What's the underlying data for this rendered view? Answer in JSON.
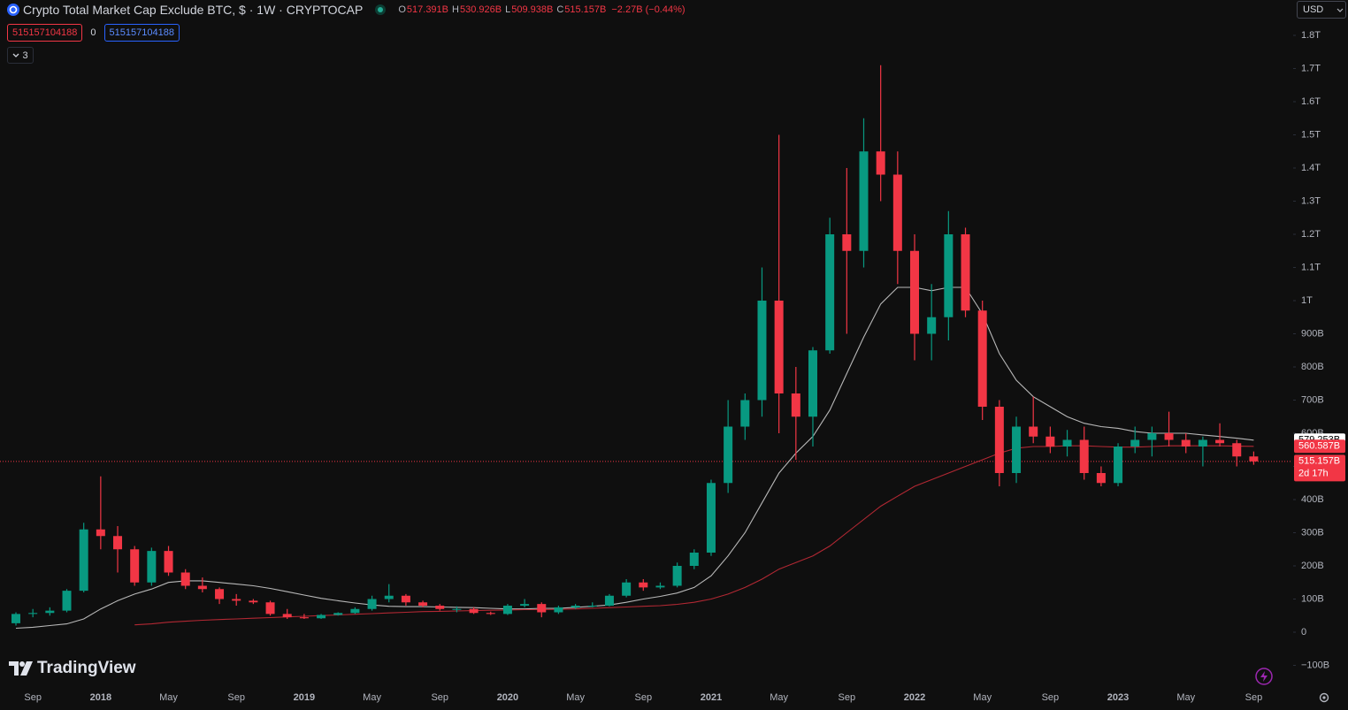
{
  "header": {
    "symbol": "Crypto Total Market Cap Exclude BTC, $ · 1W · CRYPTOCAP",
    "ohlc": [
      {
        "key": "O",
        "value": "517.391B"
      },
      {
        "key": "H",
        "value": "530.926B"
      },
      {
        "key": "L",
        "value": "509.938B"
      },
      {
        "key": "C",
        "value": "515.157B"
      }
    ],
    "change": "−2.27B (−0.44%)",
    "inputs": [
      "515157104188",
      "0",
      "515157104188"
    ],
    "collapse_count": "3",
    "currency": "USD",
    "logo": "TradingView"
  },
  "chart_data": {
    "type": "candlestick",
    "categories": [
      null,
      "Sep",
      null,
      null,
      null,
      "2018",
      null,
      null,
      null,
      "May",
      null,
      null,
      null,
      "Sep",
      null,
      null,
      null,
      "2019",
      null,
      null,
      null,
      "May",
      null,
      null,
      null,
      "Sep",
      null,
      null,
      null,
      "2020",
      null,
      null,
      null,
      "May",
      null,
      null,
      null,
      "Sep",
      null,
      null,
      null,
      "2021",
      null,
      null,
      null,
      "May",
      null,
      null,
      null,
      "Sep",
      null,
      null,
      null,
      "2022",
      null,
      null,
      null,
      "May",
      null,
      null,
      null,
      "Sep",
      null,
      null,
      null,
      "2023",
      null,
      null,
      null,
      "May",
      null,
      null,
      null,
      "Sep"
    ],
    "open": [
      27,
      55,
      58,
      65,
      125,
      310,
      290,
      250,
      150,
      245,
      180,
      140,
      130,
      100,
      95,
      90,
      55,
      45,
      42,
      52,
      58,
      70,
      100,
      110,
      90,
      80,
      70,
      70,
      58,
      55,
      80,
      85,
      60,
      75,
      80,
      80,
      110,
      150,
      135,
      140,
      200,
      240,
      450,
      620,
      700,
      1000,
      720,
      650,
      850,
      1200,
      1150,
      1450,
      1380,
      1150,
      900,
      950,
      1200,
      970,
      680,
      480,
      620,
      590,
      560,
      580,
      480,
      450,
      560,
      580,
      600,
      580,
      560,
      580,
      570,
      530
    ],
    "high": [
      60,
      70,
      75,
      130,
      330,
      470,
      320,
      260,
      255,
      260,
      190,
      165,
      135,
      115,
      100,
      95,
      70,
      55,
      55,
      60,
      75,
      110,
      145,
      115,
      95,
      85,
      78,
      75,
      62,
      85,
      100,
      90,
      80,
      85,
      90,
      115,
      160,
      160,
      150,
      210,
      250,
      460,
      700,
      720,
      1100,
      1500,
      800,
      860,
      1250,
      1400,
      1550,
      1710,
      1450,
      1200,
      1050,
      1270,
      1220,
      1000,
      700,
      650,
      710,
      620,
      610,
      620,
      500,
      570,
      620,
      620,
      665,
      600,
      590,
      630,
      580,
      545
    ],
    "low": [
      20,
      45,
      50,
      60,
      120,
      250,
      180,
      140,
      140,
      170,
      130,
      120,
      85,
      80,
      85,
      50,
      40,
      40,
      40,
      50,
      55,
      65,
      90,
      80,
      75,
      65,
      60,
      55,
      52,
      52,
      75,
      45,
      55,
      70,
      75,
      78,
      105,
      125,
      130,
      135,
      190,
      230,
      420,
      580,
      650,
      600,
      520,
      560,
      840,
      900,
      1100,
      1300,
      1050,
      820,
      820,
      880,
      950,
      640,
      440,
      450,
      570,
      540,
      530,
      460,
      440,
      440,
      540,
      530,
      560,
      540,
      500,
      560,
      500,
      505
    ],
    "close": [
      55,
      58,
      65,
      125,
      310,
      290,
      250,
      150,
      245,
      180,
      140,
      130,
      100,
      95,
      90,
      55,
      45,
      42,
      52,
      58,
      70,
      100,
      110,
      90,
      80,
      70,
      70,
      58,
      55,
      80,
      85,
      60,
      75,
      80,
      80,
      110,
      150,
      135,
      140,
      200,
      240,
      450,
      620,
      700,
      1000,
      720,
      650,
      850,
      1200,
      1150,
      1450,
      1380,
      1150,
      900,
      950,
      1200,
      970,
      680,
      480,
      620,
      590,
      560,
      580,
      480,
      450,
      560,
      580,
      600,
      580,
      560,
      580,
      570,
      530,
      515.157
    ],
    "up_color": "#089981",
    "down_color": "#f23645",
    "series": [
      {
        "color": "#b8b8b8",
        "values": [
          12,
          15,
          20,
          25,
          40,
          70,
          95,
          115,
          130,
          150,
          155,
          155,
          150,
          145,
          140,
          132,
          122,
          112,
          102,
          95,
          88,
          82,
          78,
          77,
          77,
          76,
          75,
          74,
          72,
          70,
          70,
          72,
          72,
          75,
          78,
          82,
          90,
          100,
          108,
          118,
          135,
          170,
          230,
          300,
          390,
          480,
          540,
          590,
          670,
          780,
          890,
          990,
          1040,
          1040,
          1030,
          1040,
          1040,
          960,
          840,
          760,
          710,
          680,
          650,
          630,
          620,
          615,
          605,
          600,
          600,
          600,
          595,
          590,
          585,
          579.253
        ]
      },
      {
        "color": "#b22833",
        "values": [
          null,
          null,
          null,
          null,
          null,
          null,
          null,
          22,
          25,
          30,
          33,
          36,
          38,
          40,
          42,
          44,
          46,
          48,
          50,
          52,
          54,
          56,
          58,
          60,
          62,
          63,
          64,
          65,
          66,
          67,
          68,
          68,
          69,
          70,
          72,
          74,
          76,
          78,
          80,
          84,
          90,
          100,
          115,
          135,
          160,
          190,
          210,
          230,
          260,
          300,
          340,
          380,
          410,
          440,
          460,
          480,
          500,
          520,
          540,
          555,
          560,
          560,
          562,
          562,
          560,
          558,
          558,
          560,
          562,
          562,
          562,
          562,
          561,
          560.587
        ]
      }
    ],
    "ylim": [
      -154.67,
      1906.67
    ],
    "yticks": [
      {
        "value": -100,
        "label": "−100B"
      },
      0,
      {
        "value": 100,
        "label": "100B"
      },
      {
        "value": 200,
        "label": "200B"
      },
      {
        "value": 300,
        "label": "300B"
      },
      {
        "value": 400,
        "label": "400B"
      },
      {
        "value": 500,
        "label": "500B"
      },
      {
        "value": 600,
        "label": "600B"
      },
      {
        "value": 700,
        "label": "700B"
      },
      {
        "value": 800,
        "label": "800B"
      },
      {
        "value": 900,
        "label": "900B"
      },
      {
        "value": 1000,
        "label": "1T"
      },
      {
        "value": 1100,
        "label": "1.1T"
      },
      {
        "value": 1200,
        "label": "1.2T"
      },
      {
        "value": 1300,
        "label": "1.3T"
      },
      {
        "value": 1400,
        "label": "1.4T"
      },
      {
        "value": 1500,
        "label": "1.5T"
      },
      {
        "value": 1600,
        "label": "1.6T"
      },
      {
        "value": 1700,
        "label": "1.7T"
      },
      {
        "value": 1800,
        "label": "1.8T"
      }
    ],
    "price_tags": [
      {
        "value": 579.253,
        "label": "579.253B",
        "color": "#ffffff",
        "text_color": "#000000"
      },
      {
        "value": 560.587,
        "label": "560.587B",
        "color": "#f23645",
        "text_color": "#ffffff"
      },
      {
        "value": 515.157,
        "label": "515.157B",
        "color": "#f23645",
        "text_color": "#ffffff"
      }
    ],
    "countdown": "2d 17h"
  }
}
